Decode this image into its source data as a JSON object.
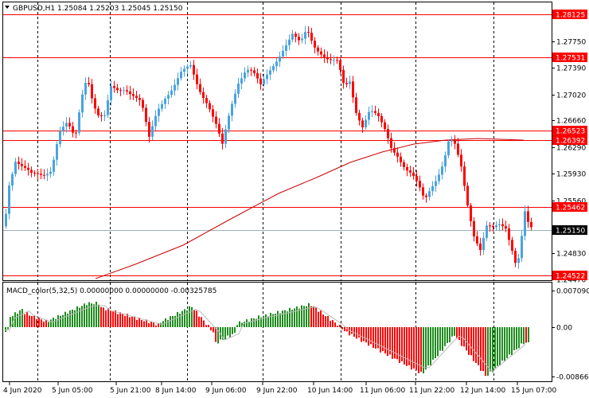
{
  "header": {
    "symbol_line": "GBPUSD,H1  1.25084  1.25203  1.25045  1.25150"
  },
  "price_axis": {
    "ticks": [
      "1.27750",
      "1.27390",
      "1.27020",
      "1.26660",
      "1.26290",
      "1.25930",
      "1.25560",
      "1.24830",
      "1.24470"
    ],
    "levels": [
      {
        "label": "1.28125",
        "value": 1.28125,
        "kind": "resistance"
      },
      {
        "label": "1.27531",
        "value": 1.27531,
        "kind": "resistance"
      },
      {
        "label": "1.26523",
        "value": 1.26523,
        "kind": "resistance"
      },
      {
        "label": "1.26392",
        "value": 1.26392,
        "kind": "resistance"
      },
      {
        "label": "1.25462",
        "value": 1.25462,
        "kind": "resistance"
      },
      {
        "label": "1.24522",
        "value": 1.24522,
        "kind": "resistance"
      }
    ],
    "current_label": "1.25150",
    "current_value": 1.2515
  },
  "macd": {
    "title": "MACD_color(5,32,5) 0.00000000 0.00000000 -0.00325785",
    "ticks": [
      "0.0070907",
      "0.00",
      "-0.0086695"
    ]
  },
  "time_axis": {
    "labels": [
      "4 Jun 2020",
      "5 Jun 05:00",
      "5 Jun 21:00",
      "8 Jun 14:00",
      "9 Jun 06:00",
      "9 Jun 22:00",
      "10 Jun 14:00",
      "11 Jun 06:00",
      "11 Jun 22:00",
      "12 Jun 14:00",
      "15 Jun 07:00"
    ]
  },
  "colors": {
    "bull": "#4aa3df",
    "bear": "#ff0000",
    "level_line": "#ff0000",
    "ma_line": "#cc0000",
    "macd_up": "#1e8c1e",
    "macd_down": "#ff0000",
    "grid": "#000000",
    "current_price_line": "#9bb0c4"
  }
}
